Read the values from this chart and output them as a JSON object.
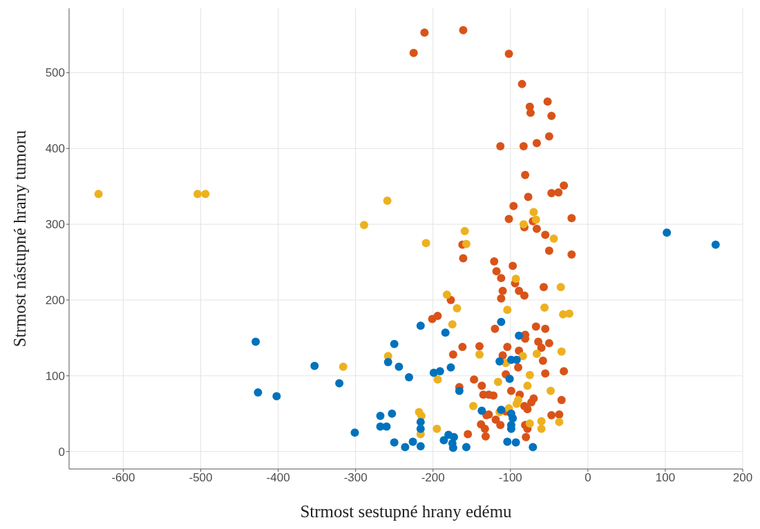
{
  "chart_data": {
    "type": "scatter",
    "xlabel": "Strmost sestupné hrany edému",
    "ylabel": "Strmost nástupné hrany tumoru",
    "xlim": [
      -670,
      200
    ],
    "ylim": [
      -23,
      585
    ],
    "xticks": [
      -600,
      -500,
      -400,
      -300,
      -200,
      -100,
      0,
      100,
      200
    ],
    "yticks": [
      0,
      100,
      200,
      300,
      400,
      500
    ],
    "grid": true,
    "marker": "circle",
    "series": [
      {
        "color": "#d95319",
        "x": [
          -225,
          -211,
          -161,
          -102,
          -85,
          -75,
          -74,
          -52,
          -47,
          -50,
          -66,
          -83,
          -113,
          -81,
          -31,
          -47,
          -38,
          -77,
          -96,
          -102,
          -71,
          -82,
          -66,
          -55,
          -21,
          -50,
          -21,
          -162,
          -161,
          -121,
          -118,
          -112,
          -97,
          -94,
          -89,
          -82,
          -110,
          -112,
          -57,
          -177,
          -194,
          -201,
          -120,
          -81,
          -81,
          -55,
          -67,
          -64,
          -50,
          -60,
          -162,
          -140,
          -104,
          -89,
          -110,
          -174,
          -90,
          -58,
          -55,
          -31,
          -106,
          -147,
          -137,
          -166,
          -99,
          -88,
          -70,
          -73,
          -135,
          -128,
          -122,
          -82,
          -78,
          -34,
          -47,
          -37,
          -131,
          -128,
          -106,
          -119,
          -113,
          -138,
          -133,
          -132,
          -155,
          -81,
          -78,
          -80
        ],
        "values": [
          526,
          553,
          556,
          525,
          485,
          455,
          447,
          462,
          443,
          416,
          407,
          403,
          403,
          365,
          351,
          341,
          342,
          336,
          324,
          307,
          304,
          296,
          294,
          286,
          308,
          265,
          260,
          273,
          255,
          251,
          238,
          229,
          245,
          222,
          212,
          206,
          212,
          202,
          217,
          200,
          179,
          175,
          162,
          154,
          149,
          162,
          165,
          145,
          143,
          137,
          138,
          139,
          138,
          133,
          127,
          128,
          111,
          120,
          103,
          106,
          102,
          95,
          87,
          85,
          80,
          75,
          70,
          65,
          75,
          75,
          74,
          60,
          56,
          68,
          48,
          49,
          48,
          49,
          53,
          42,
          35,
          36,
          30,
          20,
          23,
          35,
          30,
          19
        ]
      },
      {
        "color": "#edb120",
        "x": [
          -632,
          -504,
          -494,
          -289,
          -259,
          -316,
          -258,
          -209,
          -159,
          -157,
          -70,
          -67,
          -83,
          -44,
          -182,
          -169,
          -175,
          -140,
          -194,
          -148,
          -116,
          -104,
          -93,
          -84,
          -106,
          -75,
          -78,
          -66,
          -56,
          -35,
          -32,
          -24,
          -34,
          -48,
          -90,
          -92,
          -102,
          -114,
          -75,
          -60,
          -60,
          -37,
          -218,
          -215,
          -216,
          -195
        ],
        "values": [
          340,
          340,
          340,
          299,
          331,
          112,
          126,
          275,
          291,
          274,
          316,
          306,
          300,
          281,
          207,
          189,
          168,
          128,
          95,
          60,
          92,
          187,
          228,
          126,
          117,
          101,
          87,
          129,
          190,
          217,
          181,
          182,
          132,
          80,
          68,
          63,
          57,
          52,
          37,
          40,
          30,
          39,
          52,
          47,
          23,
          30
        ]
      },
      {
        "color": "#0072bd",
        "x": [
          102,
          165,
          -250,
          -258,
          -244,
          -321,
          -353,
          -429,
          -426,
          -402,
          -301,
          -268,
          -253,
          -268,
          -260,
          -250,
          -216,
          -184,
          -231,
          -199,
          -191,
          -177,
          -166,
          -112,
          -89,
          -114,
          -99,
          -92,
          -101,
          -216,
          -216,
          -236,
          -226,
          -216,
          -186,
          -180,
          -173,
          -175,
          -174,
          -157,
          -112,
          -99,
          -97,
          -99,
          -99,
          -104,
          -93,
          -71,
          -137
        ],
        "values": [
          289,
          273,
          142,
          118,
          112,
          90,
          113,
          145,
          78,
          73,
          25,
          47,
          50,
          33,
          33,
          12,
          166,
          157,
          98,
          104,
          106,
          111,
          80,
          171,
          153,
          119,
          121,
          121,
          96,
          39,
          30,
          6,
          13,
          7,
          15,
          22,
          19,
          11,
          5,
          6,
          55,
          50,
          44,
          35,
          30,
          13,
          12,
          6,
          54
        ]
      }
    ]
  }
}
